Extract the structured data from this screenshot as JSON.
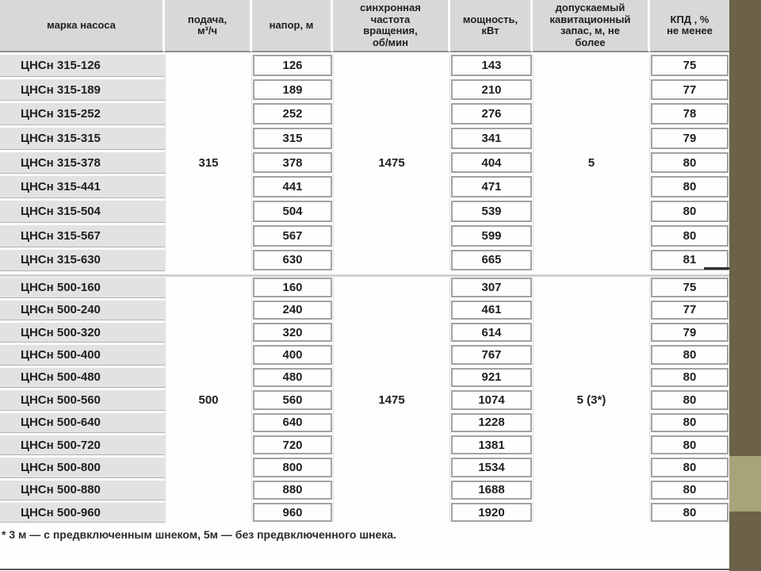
{
  "table": {
    "headers": {
      "pump": "марка насоса",
      "flow": "подача,\nм³/ч",
      "head": "напор, м",
      "speed": "синхронная\nчастота\nвращения,\nоб/мин",
      "power": "мощность,\nкВт",
      "cavitation": "допускаемый\nкавитационный\nзапас, м, не\nболее",
      "efficiency": "КПД , %\nне менее"
    },
    "sections": [
      {
        "flow": "315",
        "speed": "1475",
        "cavitation": "5",
        "rows": [
          {
            "name": "ЦНСн 315-126",
            "head": "126",
            "power": "143",
            "efficiency": "75"
          },
          {
            "name": "ЦНСн 315-189",
            "head": "189",
            "power": "210",
            "efficiency": "77"
          },
          {
            "name": "ЦНСн 315-252",
            "head": "252",
            "power": "276",
            "efficiency": "78"
          },
          {
            "name": "ЦНСн 315-315",
            "head": "315",
            "power": "341",
            "efficiency": "79"
          },
          {
            "name": "ЦНСн 315-378",
            "head": "378",
            "power": "404",
            "efficiency": "80"
          },
          {
            "name": "ЦНСн 315-441",
            "head": "441",
            "power": "471",
            "efficiency": "80"
          },
          {
            "name": "ЦНСн 315-504",
            "head": "504",
            "power": "539",
            "efficiency": "80"
          },
          {
            "name": "ЦНСн 315-567",
            "head": "567",
            "power": "599",
            "efficiency": "80"
          },
          {
            "name": "ЦНСн 315-630",
            "head": "630",
            "power": "665",
            "efficiency": "81"
          }
        ]
      },
      {
        "flow": "500",
        "speed": "1475",
        "cavitation": "5 (3*)",
        "rows": [
          {
            "name": "ЦНСн 500-160",
            "head": "160",
            "power": "307",
            "efficiency": "75"
          },
          {
            "name": "ЦНСн 500-240",
            "head": "240",
            "power": "461",
            "efficiency": "77"
          },
          {
            "name": "ЦНСн 500-320",
            "head": "320",
            "power": "614",
            "efficiency": "79"
          },
          {
            "name": "ЦНСн 500-400",
            "head": "400",
            "power": "767",
            "efficiency": "80"
          },
          {
            "name": "ЦНСн 500-480",
            "head": "480",
            "power": "921",
            "efficiency": "80"
          },
          {
            "name": "ЦНСн 500-560",
            "head": "560",
            "power": "1074",
            "efficiency": "80"
          },
          {
            "name": "ЦНСн 500-640",
            "head": "640",
            "power": "1228",
            "efficiency": "80"
          },
          {
            "name": "ЦНСн 500-720",
            "head": "720",
            "power": "1381",
            "efficiency": "80"
          },
          {
            "name": "ЦНСн 500-800",
            "head": "800",
            "power": "1534",
            "efficiency": "80"
          },
          {
            "name": "ЦНСн 500-880",
            "head": "880",
            "power": "1688",
            "efficiency": "80"
          },
          {
            "name": "ЦНСн 500-960",
            "head": "960",
            "power": "1920",
            "efficiency": "80"
          }
        ]
      }
    ],
    "footnote": "* 3 м — с предвключенным шнеком, 5м — без предвключенного шнека."
  },
  "colors": {
    "header_bg": "#d8d8d8",
    "name_cell_bg": "#e2e2e2",
    "box_border": "#a2a2a2",
    "edge_bar": "#6b6249",
    "edge_bar_accent": "#a9a379"
  }
}
